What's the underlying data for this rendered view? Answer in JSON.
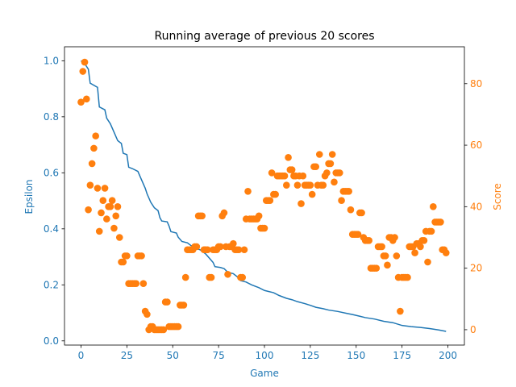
{
  "chart_data": {
    "type": "line",
    "title": "Running average of previous 20 scores",
    "xlabel": "Game",
    "ylabel_left": "Epsilon",
    "ylabel_right": "Score",
    "xlim": [
      -9,
      209
    ],
    "ylim_left": [
      -0.015,
      1.05
    ],
    "ylim_right": [
      -5,
      92
    ],
    "x_ticks": [
      0,
      25,
      50,
      75,
      100,
      125,
      150,
      175,
      200
    ],
    "y_left_ticks": [
      0.0,
      0.2,
      0.4,
      0.6,
      0.8,
      1.0
    ],
    "y_left_tick_labels": [
      "0.0",
      "0.2",
      "0.4",
      "0.6",
      "0.8",
      "1.0"
    ],
    "y_right_ticks": [
      0,
      20,
      40,
      60,
      80
    ],
    "grid": false,
    "colors": {
      "epsilon": "#1f77b4",
      "score": "#ff7f0e",
      "axes": "#000000"
    },
    "series": [
      {
        "role": "epsilon",
        "kind": "line",
        "axis": "left",
        "points": [
          [
            0,
            1.0
          ],
          [
            2,
            0.99
          ],
          [
            4,
            0.97
          ],
          [
            5,
            0.92
          ],
          [
            9,
            0.905
          ],
          [
            10,
            0.835
          ],
          [
            13,
            0.825
          ],
          [
            14,
            0.795
          ],
          [
            16,
            0.775
          ],
          [
            18,
            0.745
          ],
          [
            20,
            0.715
          ],
          [
            22,
            0.705
          ],
          [
            23,
            0.67
          ],
          [
            25,
            0.665
          ],
          [
            26,
            0.62
          ],
          [
            28,
            0.615
          ],
          [
            31,
            0.605
          ],
          [
            33,
            0.575
          ],
          [
            35,
            0.545
          ],
          [
            36,
            0.525
          ],
          [
            38,
            0.495
          ],
          [
            40,
            0.475
          ],
          [
            42,
            0.465
          ],
          [
            43,
            0.44
          ],
          [
            44,
            0.428
          ],
          [
            47,
            0.425
          ],
          [
            48,
            0.41
          ],
          [
            49,
            0.39
          ],
          [
            52,
            0.385
          ],
          [
            53,
            0.37
          ],
          [
            55,
            0.355
          ],
          [
            58,
            0.35
          ],
          [
            60,
            0.34
          ],
          [
            63,
            0.33
          ],
          [
            65,
            0.325
          ],
          [
            68,
            0.31
          ],
          [
            70,
            0.295
          ],
          [
            72,
            0.28
          ],
          [
            73,
            0.265
          ],
          [
            76,
            0.262
          ],
          [
            78,
            0.258
          ],
          [
            80,
            0.245
          ],
          [
            83,
            0.24
          ],
          [
            85,
            0.23
          ],
          [
            87,
            0.215
          ],
          [
            90,
            0.21
          ],
          [
            93,
            0.2
          ],
          [
            97,
            0.19
          ],
          [
            100,
            0.18
          ],
          [
            105,
            0.172
          ],
          [
            108,
            0.162
          ],
          [
            112,
            0.152
          ],
          [
            115,
            0.147
          ],
          [
            118,
            0.14
          ],
          [
            122,
            0.133
          ],
          [
            125,
            0.127
          ],
          [
            128,
            0.12
          ],
          [
            132,
            0.115
          ],
          [
            135,
            0.11
          ],
          [
            140,
            0.105
          ],
          [
            145,
            0.098
          ],
          [
            148,
            0.094
          ],
          [
            152,
            0.088
          ],
          [
            155,
            0.083
          ],
          [
            160,
            0.078
          ],
          [
            165,
            0.07
          ],
          [
            170,
            0.065
          ],
          [
            175,
            0.055
          ],
          [
            180,
            0.051
          ],
          [
            185,
            0.048
          ],
          [
            190,
            0.044
          ],
          [
            195,
            0.039
          ],
          [
            199,
            0.034
          ]
        ]
      },
      {
        "role": "score",
        "kind": "scatter",
        "axis": "right",
        "points": [
          [
            0,
            74
          ],
          [
            1,
            84
          ],
          [
            2,
            87
          ],
          [
            3,
            75
          ],
          [
            4,
            39
          ],
          [
            5,
            47
          ],
          [
            6,
            54
          ],
          [
            7,
            59
          ],
          [
            8,
            63
          ],
          [
            9,
            46
          ],
          [
            10,
            32
          ],
          [
            11,
            38
          ],
          [
            12,
            42
          ],
          [
            13,
            46
          ],
          [
            14,
            36
          ],
          [
            15,
            40
          ],
          [
            16,
            40
          ],
          [
            17,
            42
          ],
          [
            18,
            33
          ],
          [
            19,
            37
          ],
          [
            20,
            40
          ],
          [
            21,
            30
          ],
          [
            22,
            22
          ],
          [
            23,
            22
          ],
          [
            24,
            24
          ],
          [
            25,
            24
          ],
          [
            26,
            15
          ],
          [
            27,
            15
          ],
          [
            28,
            15
          ],
          [
            29,
            15
          ],
          [
            30,
            15
          ],
          [
            31,
            24
          ],
          [
            32,
            24
          ],
          [
            33,
            24
          ],
          [
            34,
            15
          ],
          [
            35,
            6
          ],
          [
            36,
            5
          ],
          [
            37,
            0
          ],
          [
            38,
            1
          ],
          [
            39,
            1
          ],
          [
            40,
            0
          ],
          [
            41,
            0
          ],
          [
            42,
            0
          ],
          [
            43,
            0
          ],
          [
            44,
            0
          ],
          [
            45,
            0
          ],
          [
            46,
            9
          ],
          [
            47,
            9
          ],
          [
            48,
            1
          ],
          [
            49,
            1
          ],
          [
            50,
            1
          ],
          [
            51,
            1
          ],
          [
            52,
            1
          ],
          [
            53,
            1
          ],
          [
            54,
            8
          ],
          [
            55,
            8
          ],
          [
            56,
            8
          ],
          [
            57,
            17
          ],
          [
            58,
            26
          ],
          [
            59,
            26
          ],
          [
            60,
            26
          ],
          [
            61,
            26
          ],
          [
            62,
            27
          ],
          [
            63,
            27
          ],
          [
            64,
            37
          ],
          [
            65,
            37
          ],
          [
            66,
            37
          ],
          [
            67,
            26
          ],
          [
            68,
            26
          ],
          [
            69,
            26
          ],
          [
            70,
            17
          ],
          [
            71,
            17
          ],
          [
            72,
            26
          ],
          [
            73,
            26
          ],
          [
            74,
            26
          ],
          [
            75,
            27
          ],
          [
            76,
            27
          ],
          [
            77,
            37
          ],
          [
            78,
            38
          ],
          [
            79,
            27
          ],
          [
            80,
            18
          ],
          [
            81,
            27
          ],
          [
            82,
            27
          ],
          [
            83,
            28
          ],
          [
            84,
            26
          ],
          [
            85,
            26
          ],
          [
            86,
            26
          ],
          [
            87,
            17
          ],
          [
            88,
            17
          ],
          [
            89,
            26
          ],
          [
            90,
            36
          ],
          [
            91,
            45
          ],
          [
            92,
            36
          ],
          [
            93,
            36
          ],
          [
            94,
            36
          ],
          [
            95,
            36
          ],
          [
            96,
            36
          ],
          [
            97,
            37
          ],
          [
            98,
            33
          ],
          [
            99,
            33
          ],
          [
            100,
            33
          ],
          [
            101,
            42
          ],
          [
            102,
            42
          ],
          [
            103,
            42
          ],
          [
            104,
            51
          ],
          [
            105,
            44
          ],
          [
            106,
            44
          ],
          [
            107,
            50
          ],
          [
            108,
            50
          ],
          [
            109,
            50
          ],
          [
            110,
            50
          ],
          [
            111,
            50
          ],
          [
            112,
            47
          ],
          [
            113,
            56
          ],
          [
            114,
            52
          ],
          [
            115,
            52
          ],
          [
            116,
            50
          ],
          [
            117,
            50
          ],
          [
            118,
            47
          ],
          [
            119,
            50
          ],
          [
            120,
            41
          ],
          [
            121,
            50
          ],
          [
            122,
            47
          ],
          [
            123,
            47
          ],
          [
            124,
            47
          ],
          [
            125,
            47
          ],
          [
            126,
            44
          ],
          [
            127,
            53
          ],
          [
            128,
            53
          ],
          [
            129,
            47
          ],
          [
            130,
            57
          ],
          [
            131,
            47
          ],
          [
            132,
            47
          ],
          [
            133,
            50
          ],
          [
            134,
            51
          ],
          [
            135,
            54
          ],
          [
            136,
            54
          ],
          [
            137,
            57
          ],
          [
            138,
            48
          ],
          [
            139,
            51
          ],
          [
            140,
            51
          ],
          [
            141,
            51
          ],
          [
            142,
            42
          ],
          [
            143,
            45
          ],
          [
            144,
            45
          ],
          [
            145,
            45
          ],
          [
            146,
            45
          ],
          [
            147,
            39
          ],
          [
            148,
            31
          ],
          [
            149,
            31
          ],
          [
            150,
            31
          ],
          [
            151,
            31
          ],
          [
            152,
            38
          ],
          [
            153,
            38
          ],
          [
            154,
            30
          ],
          [
            155,
            29
          ],
          [
            156,
            29
          ],
          [
            157,
            29
          ],
          [
            158,
            20
          ],
          [
            159,
            20
          ],
          [
            160,
            20
          ],
          [
            161,
            20
          ],
          [
            162,
            27
          ],
          [
            163,
            27
          ],
          [
            164,
            27
          ],
          [
            165,
            24
          ],
          [
            166,
            24
          ],
          [
            167,
            21
          ],
          [
            168,
            30
          ],
          [
            169,
            30
          ],
          [
            170,
            29
          ],
          [
            171,
            30
          ],
          [
            172,
            24
          ],
          [
            173,
            17
          ],
          [
            174,
            6
          ],
          [
            175,
            17
          ],
          [
            176,
            17
          ],
          [
            177,
            17
          ],
          [
            178,
            17
          ],
          [
            179,
            27
          ],
          [
            180,
            27
          ],
          [
            181,
            27
          ],
          [
            182,
            25
          ],
          [
            183,
            28
          ],
          [
            184,
            28
          ],
          [
            185,
            27
          ],
          [
            186,
            29
          ],
          [
            187,
            29
          ],
          [
            188,
            32
          ],
          [
            189,
            22
          ],
          [
            190,
            32
          ],
          [
            191,
            32
          ],
          [
            192,
            40
          ],
          [
            193,
            35
          ],
          [
            194,
            35
          ],
          [
            195,
            35
          ],
          [
            196,
            35
          ],
          [
            197,
            26
          ],
          [
            198,
            26
          ],
          [
            199,
            25
          ]
        ]
      }
    ]
  }
}
